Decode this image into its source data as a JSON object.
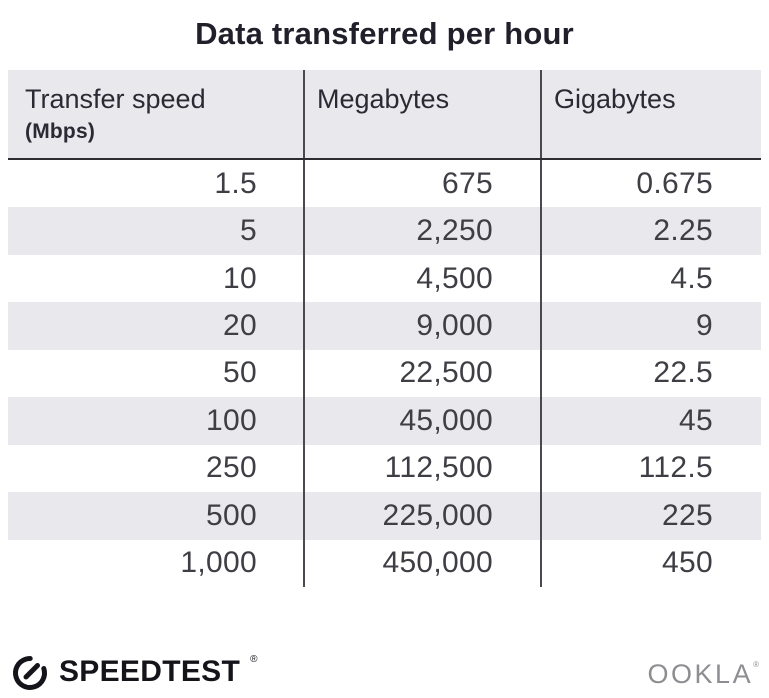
{
  "title": "Data transferred per hour",
  "table": {
    "columns": [
      {
        "label": "Transfer speed",
        "sublabel": "(Mbps)"
      },
      {
        "label": "Megabytes"
      },
      {
        "label": "Gigabytes"
      }
    ],
    "rows": [
      [
        "1.5",
        "675",
        "0.675"
      ],
      [
        "5",
        "2,250",
        "2.25"
      ],
      [
        "10",
        "4,500",
        "4.5"
      ],
      [
        "20",
        "9,000",
        "9"
      ],
      [
        "50",
        "22,500",
        "22.5"
      ],
      [
        "100",
        "45,000",
        "45"
      ],
      [
        "250",
        "112,500",
        "112.5"
      ],
      [
        "500",
        "225,000",
        "225"
      ],
      [
        "1,000",
        "450,000",
        "450"
      ]
    ]
  },
  "footer": {
    "brand": "SPEEDTEST",
    "brand_mark": "®",
    "company": "OOKLA",
    "company_mark": "®"
  },
  "colors": {
    "stripe": "#e8e8ed",
    "header_bg": "#e8e8ed",
    "divider": "#4b494f",
    "header_rule": "#2e2c33",
    "text": "#403e45",
    "title_text": "#211f29",
    "brand_dark": "#15141b",
    "ookla_gray": "#8e8e92"
  },
  "chart_data": {
    "type": "table",
    "title": "Data transferred per hour",
    "columns": [
      "Transfer speed (Mbps)",
      "Megabytes",
      "Gigabytes"
    ],
    "rows": [
      [
        1.5,
        675,
        0.675
      ],
      [
        5,
        2250,
        2.25
      ],
      [
        10,
        4500,
        4.5
      ],
      [
        20,
        9000,
        9
      ],
      [
        50,
        22500,
        22.5
      ],
      [
        100,
        45000,
        45
      ],
      [
        250,
        112500,
        112.5
      ],
      [
        500,
        225000,
        225
      ],
      [
        1000,
        450000,
        450
      ]
    ]
  }
}
